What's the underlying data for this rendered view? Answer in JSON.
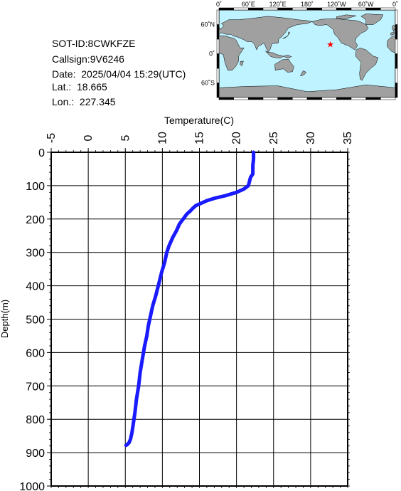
{
  "info": {
    "sot_id": "SOT-ID:8CWKFZE",
    "callsign": "Callsign:9V6246",
    "date": "Date:  2025/04/04 15:29(UTC)",
    "lat": "Lat.:  18.665",
    "lon": "Lon.:  227.345"
  },
  "map": {
    "lon_ticks": [
      "0˚",
      "60˚E",
      "120˚E",
      "180˚",
      "120˚W",
      "60˚W",
      "0˚"
    ],
    "lat_ticks": [
      "60˚N",
      "0˚",
      "60˚S"
    ],
    "ocean_color": "#bff3ff",
    "land_color": "#a0a0a0",
    "marker": {
      "lon": 227.345,
      "lat": 18.665,
      "color": "#ff0000",
      "icon": "star-icon"
    }
  },
  "chart_data": {
    "type": "line",
    "xlabel": "Temperature(C)",
    "ylabel": "Depth(m)",
    "xlim": [
      -5,
      35
    ],
    "ylim": [
      1000,
      0
    ],
    "x_ticks": [
      "-5",
      "0",
      "5",
      "10",
      "15",
      "20",
      "25",
      "30",
      "35"
    ],
    "y_ticks": [
      "0",
      "100",
      "200",
      "300",
      "400",
      "500",
      "600",
      "700",
      "800",
      "900",
      "1000"
    ],
    "grid": true,
    "line_color": "#1a1aff",
    "series": [
      {
        "x": [
          22.3,
          22.3,
          22.2,
          22.2,
          21.9,
          21.6,
          21.0,
          20.0,
          18.5,
          17.0,
          16.0,
          15.0,
          14.5,
          14.1,
          13.8,
          13.3,
          12.8,
          12.3,
          11.9,
          11.4,
          10.9,
          10.6,
          10.3,
          9.9,
          9.5,
          9.1,
          8.7,
          8.4,
          8.1,
          7.9,
          7.6,
          7.3,
          7.0,
          6.8,
          6.5,
          6.3,
          6.1,
          5.9,
          5.7,
          5.5,
          5.3,
          5.1
        ],
        "y": [
          0,
          20,
          40,
          65,
          75,
          100,
          110,
          120,
          130,
          138,
          145,
          155,
          160,
          168,
          175,
          185,
          200,
          215,
          235,
          255,
          280,
          300,
          330,
          360,
          395,
          430,
          460,
          490,
          520,
          550,
          580,
          620,
          660,
          700,
          740,
          780,
          810,
          840,
          860,
          870,
          875,
          878
        ]
      }
    ]
  }
}
